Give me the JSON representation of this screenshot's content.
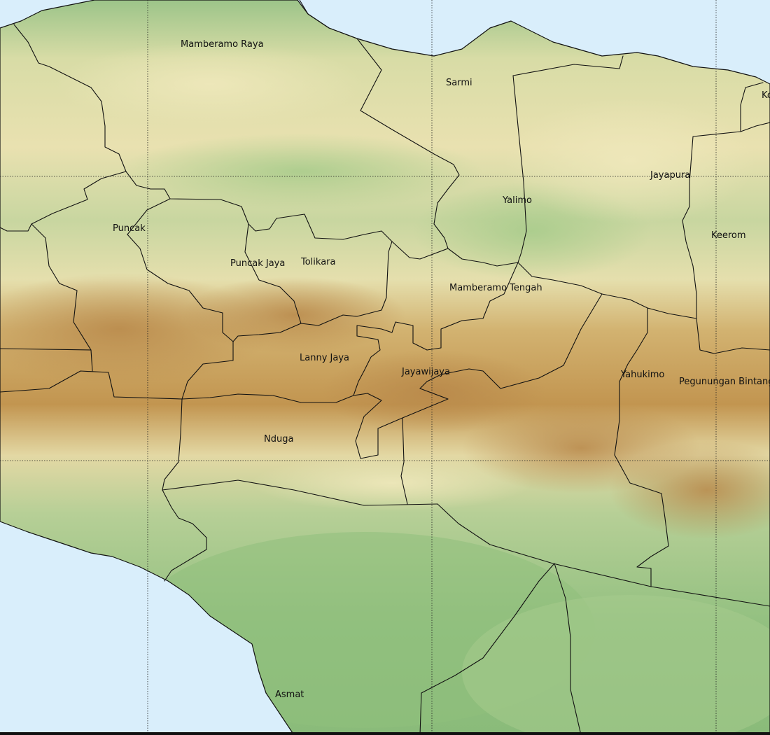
{
  "map": {
    "colors": {
      "sea": "#d9eefb",
      "lowland": "#8fbf7c",
      "midland": "#c9d9a0",
      "upland": "#e8e2b2",
      "highland": "#cfa862",
      "peak": "#b88a44",
      "border": "#111111"
    },
    "regions": [
      "Mamberamo Raya",
      "Sarmi",
      "Jayapura",
      "Ko",
      "Yalimo",
      "Keerom",
      "Puncak",
      "Puncak Jaya",
      "Tolikara",
      "Mamberamo Tengah",
      "Lanny Jaya",
      "Jayawijaya",
      "Yahukimo",
      "Pegunungan Bintang",
      "Nduga",
      "Asmat"
    ]
  }
}
